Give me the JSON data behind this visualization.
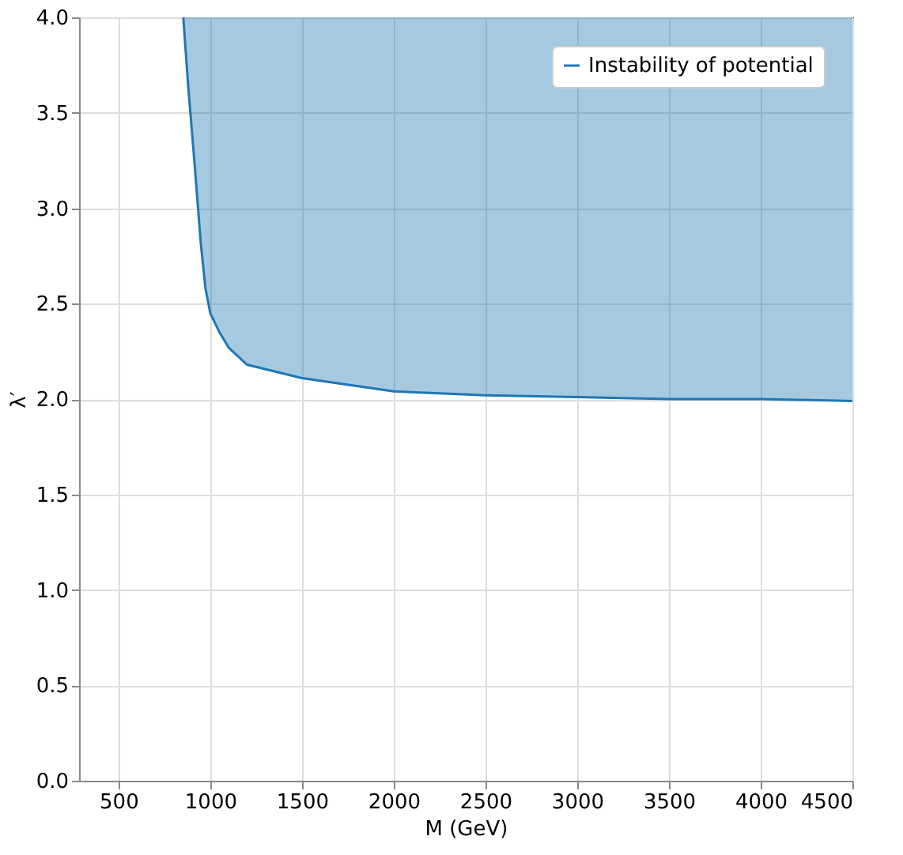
{
  "chart_data": {
    "type": "line",
    "xlabel": "M (GeV)",
    "ylabel": "λ′",
    "xlim": [
      285,
      4500
    ],
    "xticks": [
      500,
      1000,
      1500,
      2000,
      2500,
      3000,
      3500,
      4000,
      4500
    ],
    "ylim": [
      0,
      4.0
    ],
    "yticks": [
      {
        "value": 0,
        "label": "0.0"
      },
      0.5,
      {
        "value": 1,
        "label": "1.0"
      },
      1.5,
      {
        "value": 2,
        "label": "2.0"
      },
      2.5,
      {
        "value": 3,
        "label": "3.0"
      },
      3.5,
      {
        "value": 4,
        "label": "4.0"
      }
    ],
    "grid": true,
    "legend": "top right",
    "series": [
      {
        "name": "Instability of potential",
        "color": "#1f77b4",
        "x": [
          853,
          879,
          914,
          948,
          974,
          1000,
          1050,
          1100,
          1200,
          1500,
          2000,
          2500,
          3000,
          3500,
          4000,
          4500
        ],
        "values": [
          4.0,
          3.65,
          3.24,
          2.82,
          2.58,
          2.45,
          2.35,
          2.27,
          2.18,
          2.11,
          2.04,
          2.02,
          2.01,
          2.0,
          2.0,
          1.99
        ],
        "lower": [
          4.0,
          3.65,
          3.24,
          2.82,
          2.58,
          2.45,
          2.35,
          2.27,
          2.18,
          2.11,
          2.04,
          2.02,
          2.01,
          2.0,
          2.0,
          1.99
        ],
        "upper": [
          4.0,
          4.0,
          4.0,
          4.0,
          4.0,
          4.0,
          4.0,
          4.0,
          4.0,
          4.0,
          4.0,
          4.0,
          4.0,
          4.0,
          4.0,
          4.0
        ]
      }
    ]
  }
}
